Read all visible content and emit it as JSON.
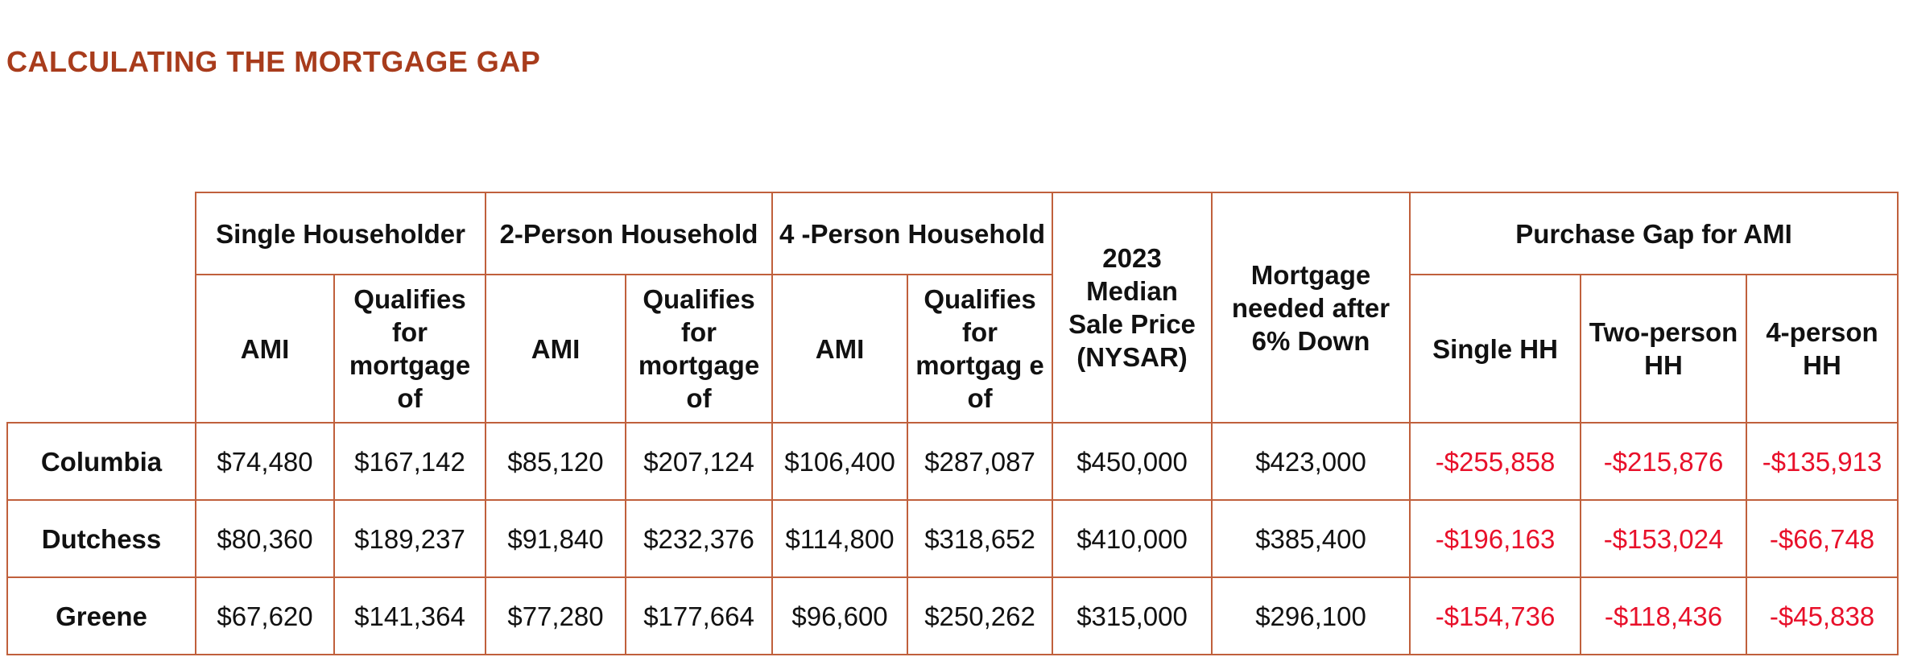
{
  "title": "CALCULATING THE MORTGAGE GAP",
  "groups": {
    "single": "Single Householder",
    "two_person": "2-Person Household",
    "four_person": "4 -Person Household",
    "median_price": "2023 Median Sale Price (NYSAR)",
    "mortgage_needed": "Mortgage needed after 6% Down",
    "purchase_gap": "Purchase Gap for AMI"
  },
  "subheaders": {
    "single_ami": "AMI",
    "single_qualifies": "Qualifies for mortgage of",
    "two_ami": "AMI",
    "two_qualifies": "Qualifies for mortgage of",
    "four_ami": "AMI",
    "four_qualifies": "Qualifies for mortgag e of",
    "gap_single": "Single HH",
    "gap_two": "Two-person HH",
    "gap_four": "4-person HH"
  },
  "rows": [
    {
      "county": "Columbia",
      "single_ami": "$74,480",
      "single_qualifies": "$167,142",
      "two_ami": "$85,120",
      "two_qualifies": "$207,124",
      "four_ami": "$106,400",
      "four_qualifies": "$287,087",
      "median_price": "$450,000",
      "mortgage_needed": "$423,000",
      "gap_single": "-$255,858",
      "gap_two": "-$215,876",
      "gap_four": "-$135,913"
    },
    {
      "county": "Dutchess",
      "single_ami": "$80,360",
      "single_qualifies": "$189,237",
      "two_ami": "$91,840",
      "two_qualifies": "$232,376",
      "four_ami": "$114,800",
      "four_qualifies": "$318,652",
      "median_price": "$410,000",
      "mortgage_needed": "$385,400",
      "gap_single": "-$196,163",
      "gap_two": "-$153,024",
      "gap_four": "-$66,748"
    },
    {
      "county": "Greene",
      "single_ami": "$67,620",
      "single_qualifies": "$141,364",
      "two_ami": "$77,280",
      "two_qualifies": "$177,664",
      "four_ami": "$96,600",
      "four_qualifies": "$250,262",
      "median_price": "$315,000",
      "mortgage_needed": "$296,100",
      "gap_single": "-$154,736",
      "gap_two": "-$118,436",
      "gap_four": "-$45,838"
    }
  ],
  "colors": {
    "title": "#a83c1c",
    "border": "#c0603c",
    "negative": "#e8102a"
  }
}
